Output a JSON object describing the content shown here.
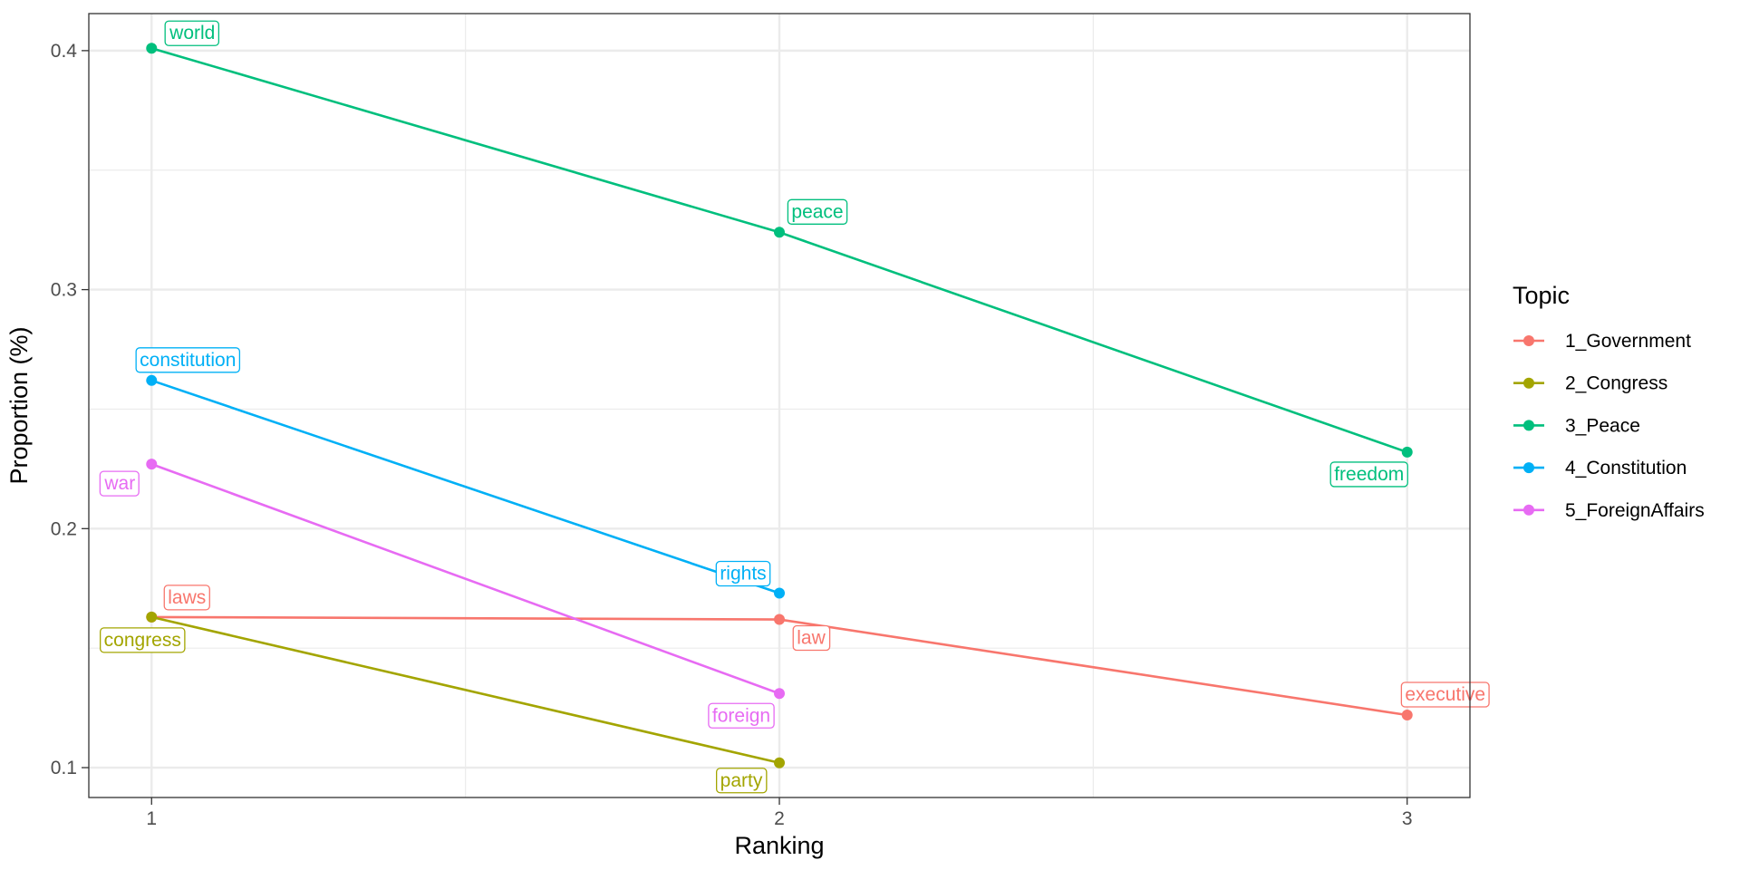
{
  "chart_data": {
    "type": "line",
    "title": "",
    "xlabel": "Ranking",
    "ylabel": "Proportion (%)",
    "xlim": [
      0.9,
      3.1
    ],
    "ylim": [
      0.0875,
      0.4155
    ],
    "x_ticks": [
      1,
      2,
      3
    ],
    "x_tick_labels": [
      "1",
      "2",
      "3"
    ],
    "y_ticks": [
      0.1,
      0.2,
      0.3,
      0.4
    ],
    "y_tick_labels": [
      "0.1",
      "0.2",
      "0.3",
      "0.4"
    ],
    "grid": true,
    "legend_title": "Topic",
    "legend_position": "right",
    "series": [
      {
        "name": "1_Government",
        "color": "#F8766D",
        "x": [
          1,
          2,
          3
        ],
        "y": [
          0.163,
          0.162,
          0.122
        ],
        "labels": [
          "laws",
          "law",
          "executive"
        ]
      },
      {
        "name": "2_Congress",
        "color": "#A3A500",
        "x": [
          1,
          2
        ],
        "y": [
          0.163,
          0.102
        ],
        "labels": [
          "congress",
          "party"
        ]
      },
      {
        "name": "3_Peace",
        "color": "#00BF7D",
        "x": [
          1,
          2,
          3
        ],
        "y": [
          0.401,
          0.324,
          0.232
        ],
        "labels": [
          "world",
          "peace",
          "freedom"
        ]
      },
      {
        "name": "4_Constitution",
        "color": "#00B0F6",
        "x": [
          1,
          2
        ],
        "y": [
          0.262,
          0.173
        ],
        "labels": [
          "constitution",
          "rights"
        ]
      },
      {
        "name": "5_ForeignAffairs",
        "color": "#E76BF3",
        "x": [
          1,
          2
        ],
        "y": [
          0.227,
          0.131
        ],
        "labels": [
          "war",
          "foreign"
        ]
      }
    ]
  }
}
